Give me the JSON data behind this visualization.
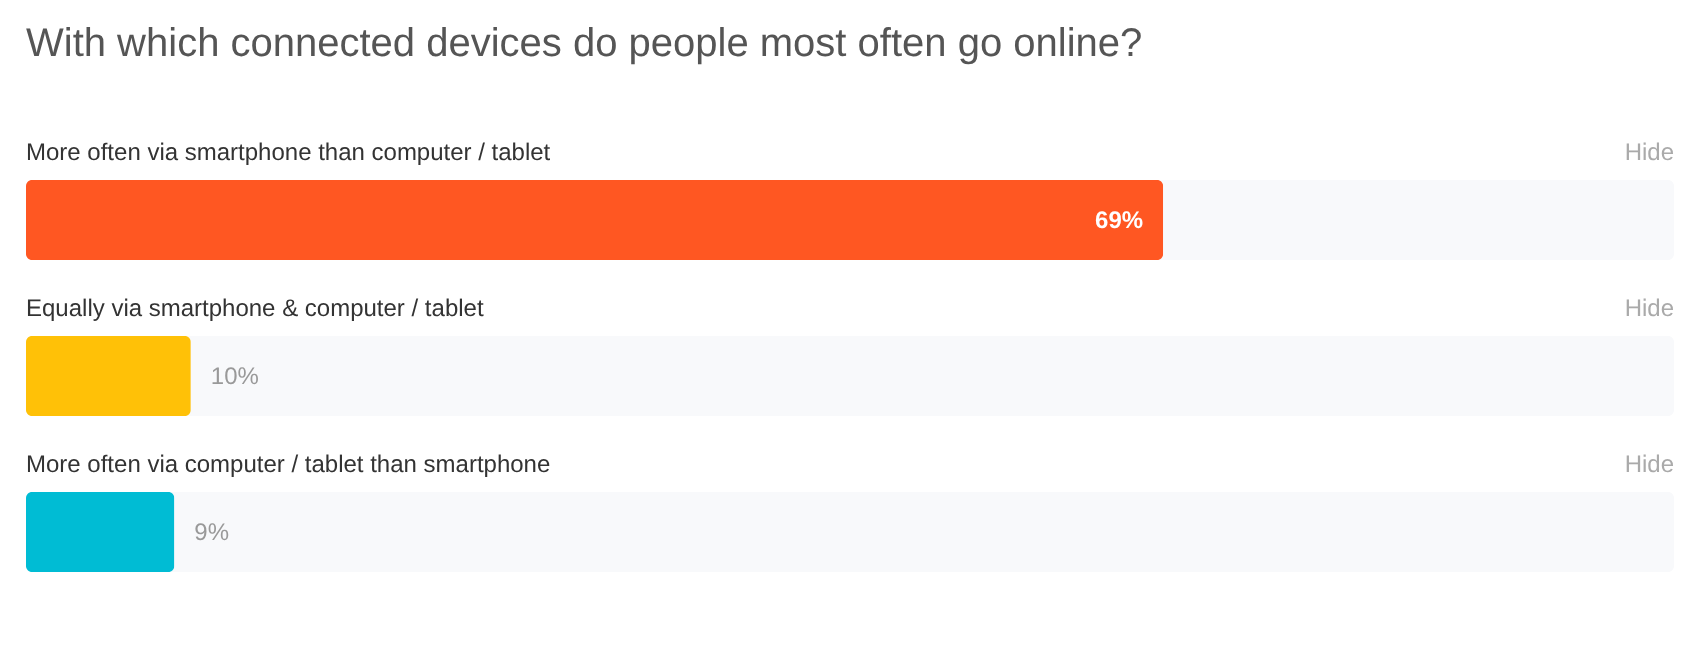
{
  "chart_data": {
    "type": "bar",
    "orientation": "horizontal",
    "title": "With which connected devices do people most often go online?",
    "categories": [
      "More often via smartphone than computer / tablet",
      "Equally via smartphone & computer / tablet",
      "More often via computer / tablet than smartphone"
    ],
    "values": [
      69,
      10,
      9
    ],
    "colors": [
      "#ff5722",
      "#ffc107",
      "#00bcd4"
    ],
    "value_labels": [
      "69%",
      "10%",
      "9%"
    ],
    "xlim": [
      0,
      100
    ],
    "annotations": [
      "Hide",
      "Hide",
      "Hide"
    ]
  }
}
